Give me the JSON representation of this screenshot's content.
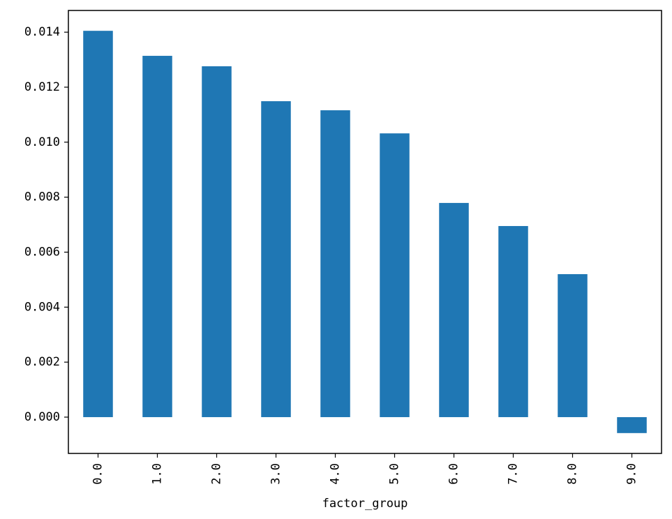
{
  "chart_data": {
    "type": "bar",
    "x_label": "factor_group",
    "categories": [
      "0.0",
      "1.0",
      "2.0",
      "3.0",
      "4.0",
      "5.0",
      "6.0",
      "7.0",
      "8.0",
      "9.0"
    ],
    "values": [
      0.01405,
      0.01314,
      0.01276,
      0.01149,
      0.01116,
      0.01032,
      0.00779,
      0.00695,
      0.0052,
      -0.00058
    ],
    "color": "#1f77b4",
    "ylim": [
      -0.00132,
      0.01479
    ],
    "yticks": [
      {
        "value": 0,
        "label": "0.000"
      },
      {
        "value": 0.002,
        "label": "0.002"
      },
      {
        "value": 0.004,
        "label": "0.004"
      },
      {
        "value": 0.006,
        "label": "0.006"
      },
      {
        "value": 0.008,
        "label": "0.008"
      },
      {
        "value": 0.01,
        "label": "0.010"
      },
      {
        "value": 0.012,
        "label": "0.012"
      },
      {
        "value": 0.014,
        "label": "0.014"
      }
    ],
    "grid": false
  }
}
